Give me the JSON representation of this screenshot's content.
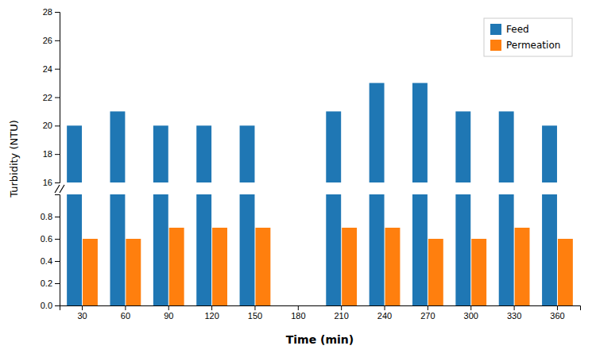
{
  "chart_data": {
    "type": "bar",
    "categories": [
      "30",
      "60",
      "90",
      "120",
      "150",
      "180",
      "210",
      "240",
      "270",
      "300",
      "330",
      "360"
    ],
    "series": [
      {
        "name": "Feed",
        "values": [
          20,
          21,
          20,
          20,
          20,
          null,
          21,
          23,
          23,
          21,
          21,
          20
        ],
        "axis": "y2"
      },
      {
        "name": "Permeation",
        "values": [
          0.6,
          0.6,
          0.7,
          0.7,
          0.7,
          null,
          0.7,
          0.7,
          0.6,
          0.6,
          0.7,
          0.6
        ]
      }
    ],
    "xlabel": "Time (min)",
    "ylabel": "Turbidity (NTU)",
    "ylim": [
      0.0,
      1.0
    ],
    "yticks": [
      {
        "value": 0.0,
        "label": "0.0"
      },
      0.2,
      0.4,
      0.6,
      0.8
    ],
    "y2lim": [
      16,
      28
    ],
    "y2ticks": [
      16,
      18,
      20,
      22,
      24,
      26,
      28
    ],
    "legend": "upper right",
    "grid": false
  }
}
